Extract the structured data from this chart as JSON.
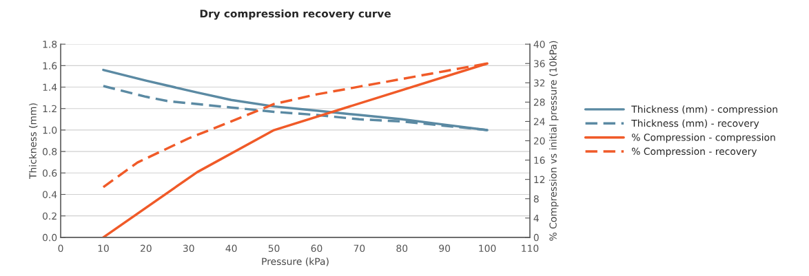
{
  "chart_data": {
    "type": "line",
    "title": "Dry compression recovery curve",
    "xlabel": "Pressure (kPa)",
    "ylabel": "Thickness (mm)",
    "y2label": "% Compression vs initial pressure (10kPa)",
    "xlim": [
      0,
      110
    ],
    "xticks": [
      0,
      10,
      20,
      30,
      40,
      50,
      60,
      70,
      80,
      90,
      100,
      110
    ],
    "ylim": [
      0,
      1.8
    ],
    "yticks": [
      {
        "value": 0,
        "label": "0.0"
      },
      {
        "value": 0.2,
        "label": "0.2"
      },
      {
        "value": 0.4,
        "label": "0.4"
      },
      {
        "value": 0.6,
        "label": "0.6"
      },
      {
        "value": 0.8,
        "label": "0.8"
      },
      {
        "value": 1.0,
        "label": "1.0"
      },
      {
        "value": 1.2,
        "label": "1.2"
      },
      {
        "value": 1.4,
        "label": "1.4"
      },
      {
        "value": 1.6,
        "label": "1.6"
      },
      {
        "value": 1.8,
        "label": "1.8"
      }
    ],
    "y2lim": [
      0,
      40
    ],
    "y2ticks": [
      0,
      4,
      8,
      12,
      16,
      20,
      24,
      28,
      32,
      36,
      40
    ],
    "grid": "y",
    "legend": "right",
    "marker": "none",
    "series": [
      {
        "name": "Thickness (mm) - compression",
        "color": "#5b8aa3",
        "line_style": "solid",
        "x": [
          10,
          20,
          32,
          40,
          50,
          60,
          70,
          80,
          90,
          100
        ],
        "values": [
          1.56,
          1.46,
          1.35,
          1.28,
          1.22,
          1.18,
          1.14,
          1.1,
          1.05,
          1.0
        ]
      },
      {
        "name": "Thickness (mm) - recovery",
        "color": "#5b8aa3",
        "line_style": "dashed",
        "x": [
          10,
          20,
          25,
          40,
          50,
          60,
          70,
          80,
          90,
          100
        ],
        "values": [
          1.41,
          1.31,
          1.27,
          1.21,
          1.17,
          1.14,
          1.1,
          1.08,
          1.04,
          1.0
        ]
      },
      {
        "name": "% Compression - compression",
        "color": "#f05a28",
        "line_style": "solid",
        "axis": "y2",
        "x": [
          10,
          32,
          50,
          100
        ],
        "values": [
          0,
          13.5,
          22.2,
          36
        ]
      },
      {
        "name": "% Compression - recovery",
        "color": "#f05a28",
        "line_style": "dashed",
        "axis": "y2",
        "x": [
          10,
          18,
          30,
          40,
          50,
          60,
          70,
          80,
          90,
          100
        ],
        "values": [
          10.4,
          15.5,
          20.5,
          24,
          27.6,
          29.6,
          31.2,
          32.8,
          34.4,
          36
        ]
      }
    ]
  }
}
